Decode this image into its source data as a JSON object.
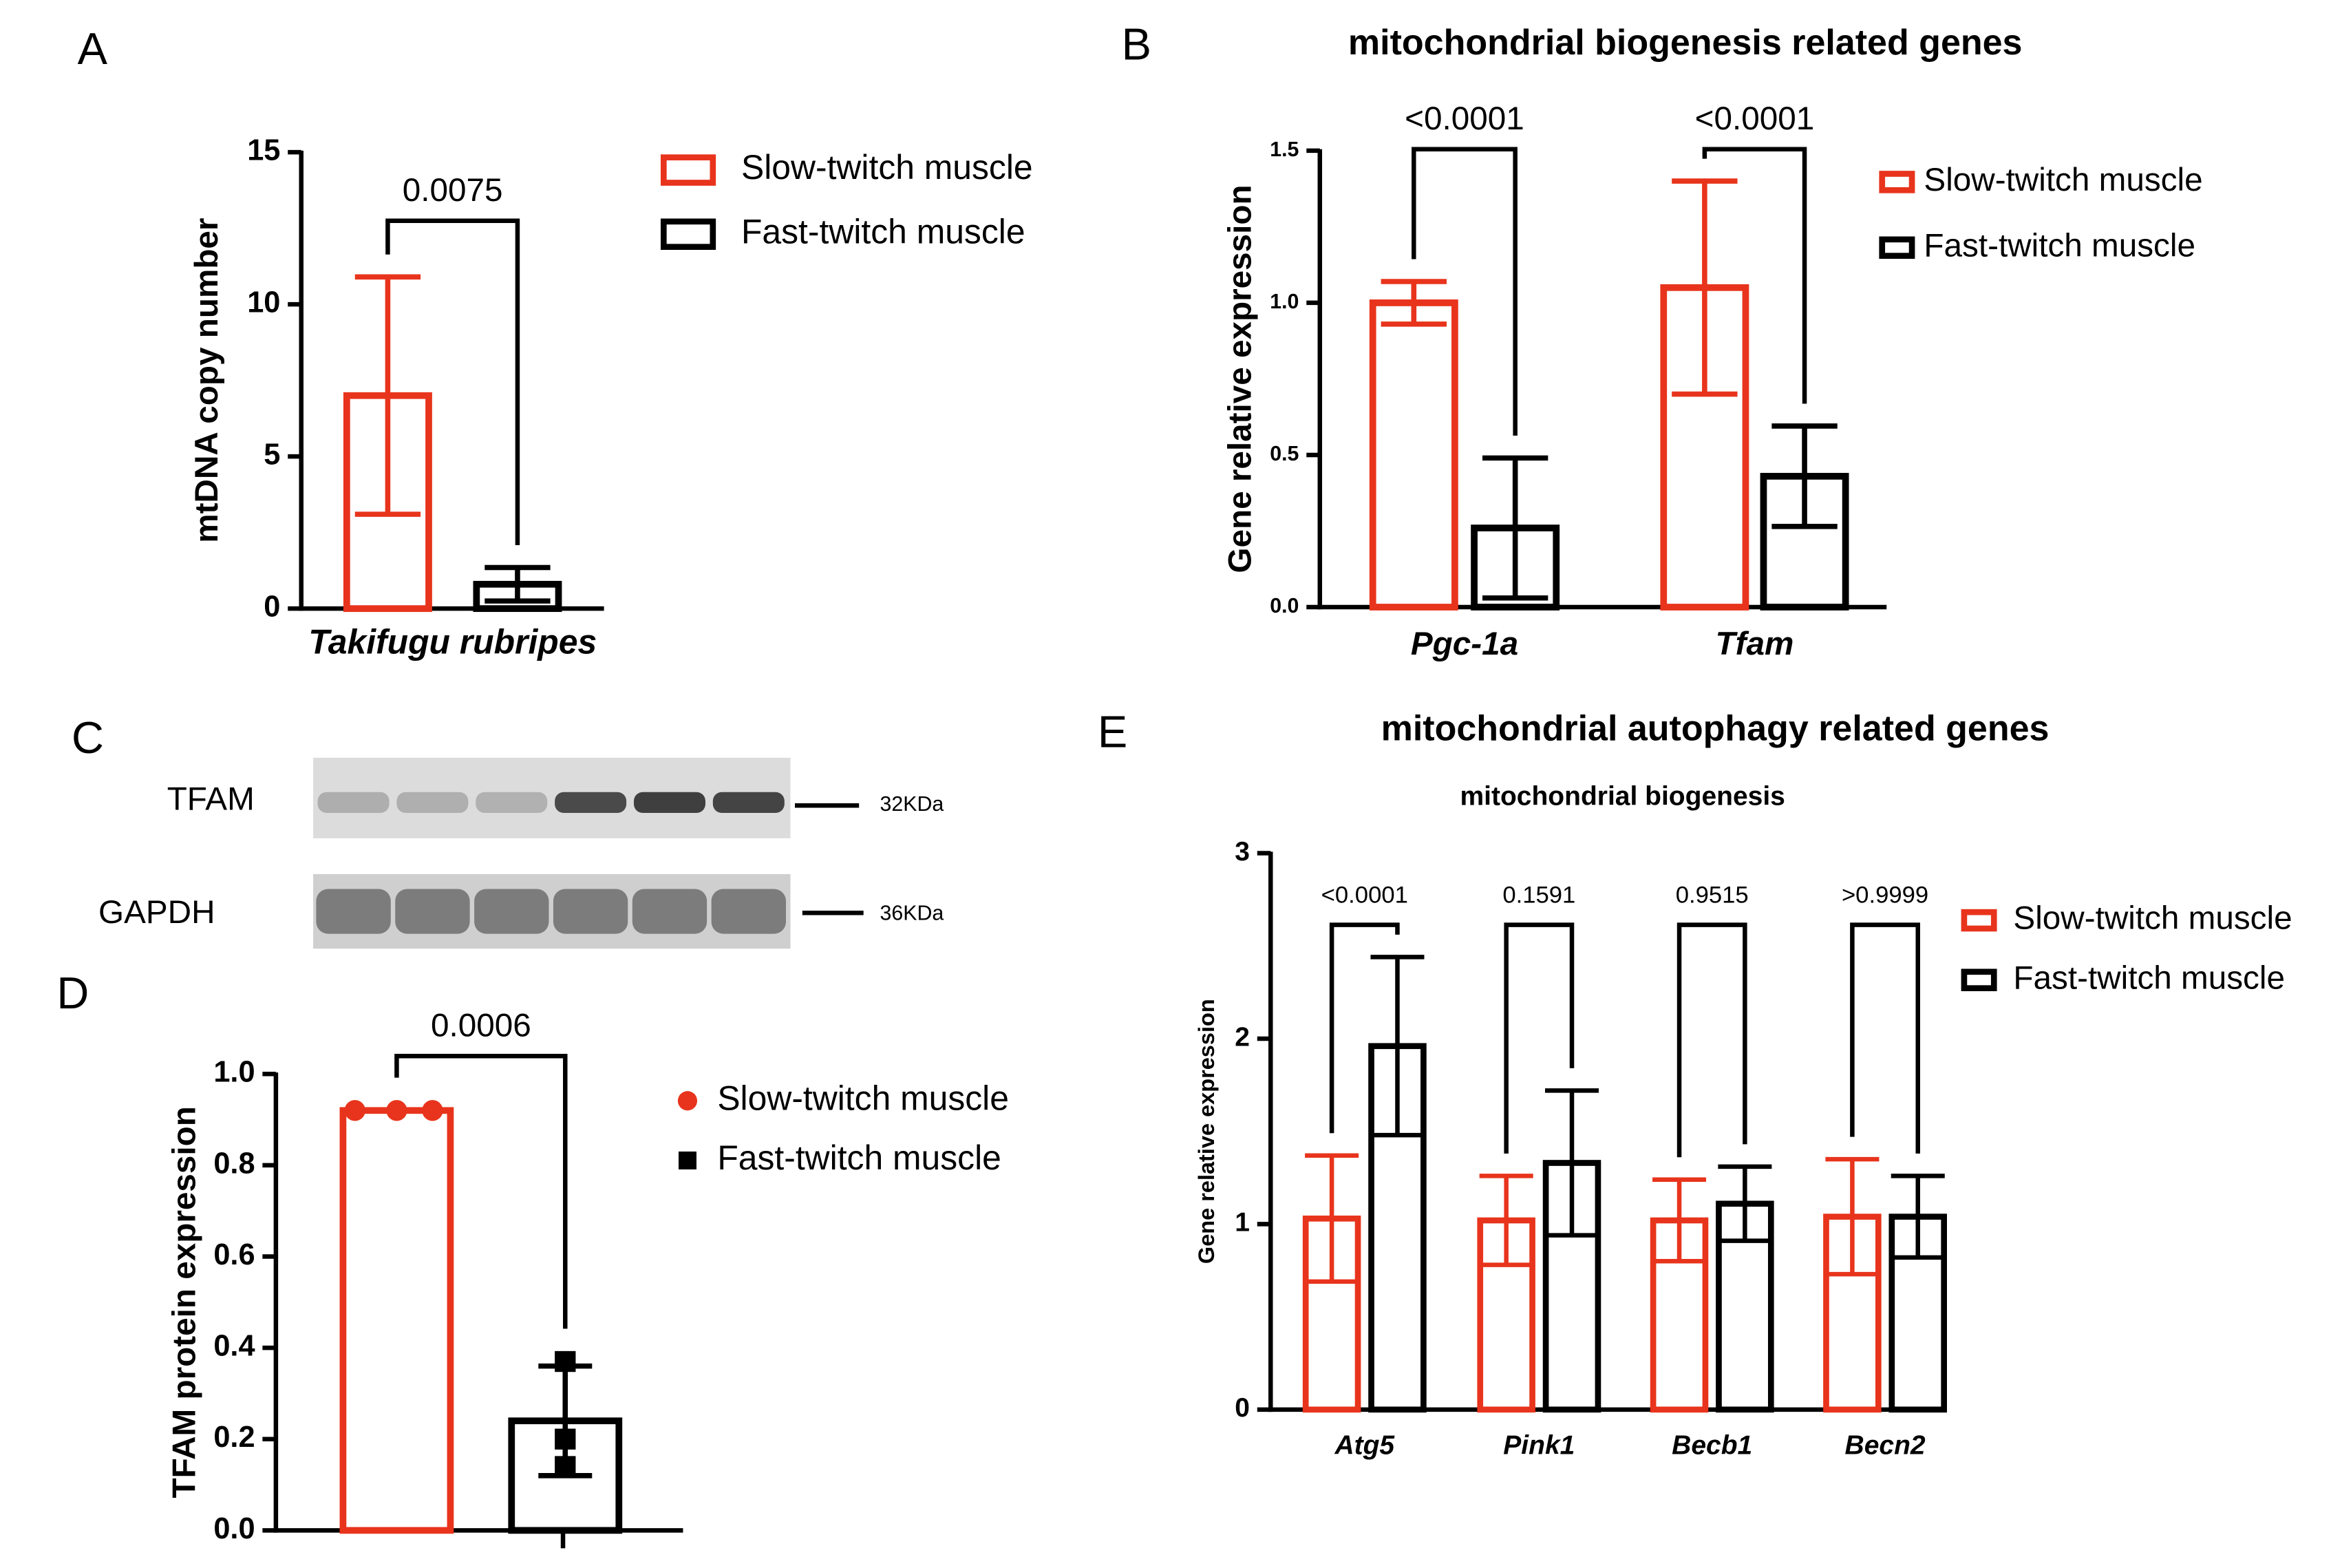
{
  "chart_data": [
    {
      "panel": "A",
      "type": "bar",
      "ylabel": "mtDNA copy number",
      "categories": [
        "Takifugu rubripes"
      ],
      "series": [
        {
          "name": "Slow-twitch muscle",
          "color": "#e8341c",
          "values": [
            7.0
          ],
          "errors": [
            3.9
          ]
        },
        {
          "name": "Fast-twitch muscle",
          "color": "#000000",
          "values": [
            0.8
          ],
          "errors": [
            0.55
          ]
        }
      ],
      "pvalues": [
        "0.0075"
      ],
      "ylim": [
        0,
        15
      ],
      "yticks": [
        0,
        5,
        10,
        15
      ]
    },
    {
      "panel": "B",
      "type": "bar",
      "title": "mitochondrial biogenesis related genes",
      "ylabel": "Gene relative expression",
      "categories": [
        "Pgc-1a",
        "Tfam"
      ],
      "series": [
        {
          "name": "Slow-twitch muscle",
          "color": "#e8341c",
          "values": [
            1.0,
            1.05
          ],
          "errors": [
            0.07,
            0.35
          ]
        },
        {
          "name": "Fast-twitch muscle",
          "color": "#000000",
          "values": [
            0.26,
            0.43
          ],
          "errors": [
            0.23,
            0.165
          ]
        }
      ],
      "pvalues": [
        "<0.0001",
        "<0.0001"
      ],
      "ylim": [
        0,
        1.5
      ],
      "yticks": [
        {
          "value": 0,
          "label": "0.0"
        },
        0.5,
        {
          "value": 1,
          "label": "1.0"
        },
        1.5
      ]
    },
    {
      "panel": "D",
      "type": "bar",
      "ylabel": "TFAM protein expression",
      "categories": [
        null
      ],
      "series": [
        {
          "name": "Slow-twitch muscle",
          "color": "#e8341c",
          "marker": "circle",
          "values": [
            0.92
          ],
          "points": [
            [
              0.92,
              0.92,
              0.92
            ]
          ]
        },
        {
          "name": "Fast-twitch muscle",
          "color": "#000000",
          "marker": "square",
          "values": [
            0.24
          ],
          "errors": [
            0.12
          ],
          "points": [
            [
              0.37,
              0.2,
              0.14
            ]
          ]
        }
      ],
      "pvalues": [
        "0.0006"
      ],
      "ylim": [
        0,
        1
      ],
      "yticks": [
        {
          "value": 0,
          "label": "0.0"
        },
        0.2,
        0.4,
        0.6,
        0.8,
        {
          "value": 1,
          "label": "1.0"
        }
      ]
    },
    {
      "panel": "E",
      "type": "bar",
      "title": "mitochondrial autophagy related genes",
      "subtitle": "mitochondrial biogenesis",
      "ylabel": "Gene relative expression",
      "categories": [
        "Atg5",
        "Pink1",
        "Becb1",
        "Becn2"
      ],
      "series": [
        {
          "name": "Slow-twitch muscle",
          "color": "#e8341c",
          "values": [
            1.03,
            1.02,
            1.02,
            1.04
          ],
          "errors": [
            0.34,
            0.24,
            0.22,
            0.31
          ]
        },
        {
          "name": "Fast-twitch muscle",
          "color": "#000000",
          "values": [
            1.96,
            1.33,
            1.11,
            1.04
          ],
          "errors": [
            0.48,
            0.39,
            0.2,
            0.22
          ]
        }
      ],
      "pvalues": [
        "<0.0001",
        "0.1591",
        "0.9515",
        ">0.9999"
      ],
      "ylim": [
        0,
        3
      ],
      "yticks": [
        0,
        1,
        2,
        3
      ]
    }
  ],
  "blot": {
    "panel": "C",
    "rows": [
      {
        "label": "TFAM",
        "size": "32KDa"
      },
      {
        "label": "GAPDH",
        "size": "36KDa"
      }
    ]
  }
}
